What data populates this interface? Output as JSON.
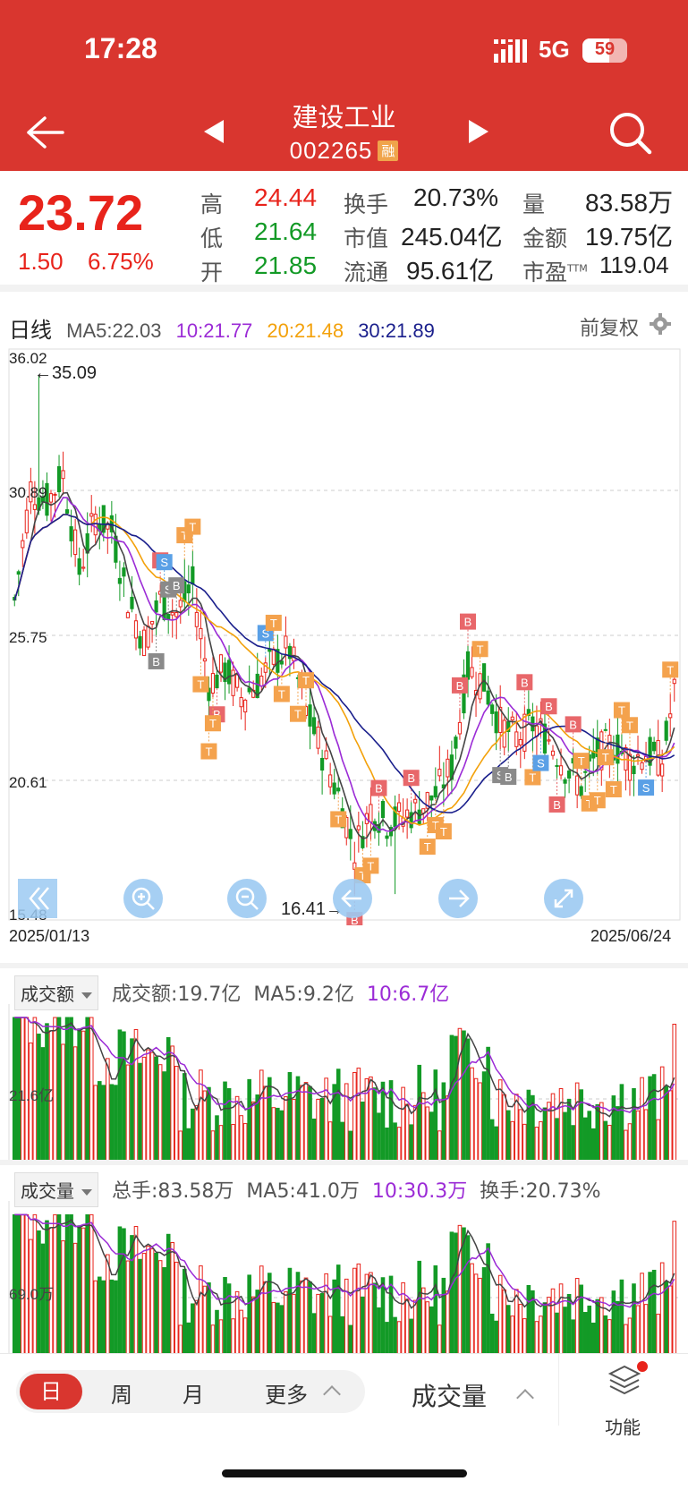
{
  "status_bar": {
    "time": "17:28",
    "network": "5G",
    "battery": "59",
    "battery_level": 0.59
  },
  "header": {
    "stock_name": "建设工业",
    "stock_code": "002265",
    "margin_tag": "融"
  },
  "quote": {
    "price": "23.72",
    "change": "1.50",
    "change_pct": "6.75%",
    "fields": [
      {
        "label": "高",
        "value": "24.44",
        "color": "red"
      },
      {
        "label": "低",
        "value": "21.64",
        "color": "green"
      },
      {
        "label": "开",
        "value": "21.85",
        "color": "green"
      },
      {
        "label": "换手",
        "value": "20.73%",
        "color": "dark"
      },
      {
        "label": "市值",
        "value": "245.04亿",
        "color": "dark"
      },
      {
        "label": "流通",
        "value": "95.61亿",
        "color": "dark"
      },
      {
        "label": "量",
        "value": "83.58万",
        "color": "dark"
      },
      {
        "label": "金额",
        "value": "19.75亿",
        "color": "dark"
      },
      {
        "label": "市盈",
        "label_sup": "TTM",
        "value": "119.04",
        "color": "dark"
      }
    ]
  },
  "kline": {
    "period_label": "日线",
    "ma_legend": [
      {
        "text": "MA5:22.03",
        "color": "#555555"
      },
      {
        "text": "10:21.77",
        "color": "#9b2bd6"
      },
      {
        "text": "20:21.48",
        "color": "#f3a10a"
      },
      {
        "text": "30:21.89",
        "color": "#1a1f8c"
      }
    ],
    "adjust_label": "前复权",
    "y_ticks": [
      "36.02",
      "30.89",
      "25.75",
      "20.61",
      "15.48"
    ],
    "high_marker": "←35.09",
    "low_marker": "16.41→",
    "date_start": "2025/01/13",
    "date_end": "2025/06/24",
    "colors": {
      "up": "#e8231b",
      "down": "#139a26",
      "ma5": "#444444",
      "ma10": "#9b2bd6",
      "ma20": "#f3a10a",
      "ma30": "#1a1f8c",
      "buy": "#e8676a",
      "sell": "#5aa0e6",
      "t": "#f4a24d",
      "gray": "#8a8a8a"
    },
    "signals": [
      {
        "label": "B",
        "type": "buy"
      },
      {
        "label": "S",
        "type": "sell"
      },
      {
        "label": "T",
        "type": "t"
      }
    ],
    "chart_icons": [
      "double-chevron-left-icon",
      "zoom-in-icon",
      "zoom-out-icon",
      "arrow-left-icon",
      "arrow-right-icon",
      "fullscreen-icon"
    ]
  },
  "amount_panel": {
    "dropdown": "成交额",
    "legend": [
      {
        "text": "成交额:19.7亿",
        "color": "#555555"
      },
      {
        "text": "MA5:9.2亿",
        "color": "#555555"
      },
      {
        "text": "10:6.7亿",
        "color": "#9b2bd6"
      }
    ],
    "y_label": "21.6亿"
  },
  "volume_panel": {
    "dropdown": "成交量",
    "legend": [
      {
        "text": "总手:83.58万",
        "color": "#555555"
      },
      {
        "text": "MA5:41.0万",
        "color": "#555555"
      },
      {
        "text": "10:30.3万",
        "color": "#9b2bd6"
      },
      {
        "text": "换手:20.73%",
        "color": "#555555"
      }
    ],
    "y_label": "69.0万"
  },
  "bottom_bar": {
    "periods": [
      "日",
      "周",
      "月",
      "更多"
    ],
    "active_period": "日",
    "indicator": "成交量",
    "function_label": "功能"
  }
}
